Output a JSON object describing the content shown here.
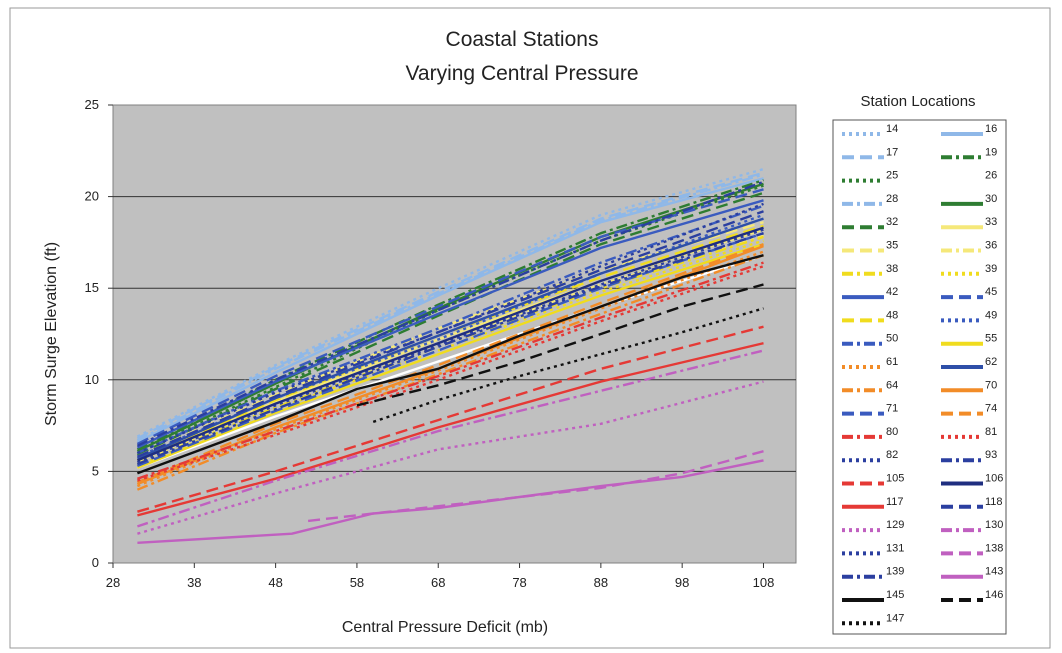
{
  "chart_data": {
    "type": "line",
    "title": "Coastal Stations",
    "subtitle": "Varying Central Pressure",
    "xlabel": "Central Pressure Deficit (mb)",
    "ylabel": "Storm Surge Elevation (ft)",
    "xlim": [
      28,
      112
    ],
    "ylim": [
      0,
      25
    ],
    "x_ticks": [
      "28",
      "38",
      "48",
      "58",
      "68",
      "78",
      "88",
      "98",
      "108"
    ],
    "y_ticks": [
      "0",
      "5",
      "10",
      "15",
      "20",
      "25"
    ],
    "grid": "horizontal",
    "background_color": "#c0c0c0",
    "legend_title": "Station Locations",
    "legend_position": "right",
    "series": [
      {
        "name": "14",
        "color": "#8fb8e8",
        "dash": "dot",
        "x": [
          31,
          48,
          68,
          88,
          108
        ],
        "y": [
          6.9,
          10.8,
          15.0,
          19.0,
          21.5
        ]
      },
      {
        "name": "16",
        "color": "#8fb8e8",
        "dash": "solid",
        "x": [
          31,
          48,
          68,
          88,
          108
        ],
        "y": [
          6.6,
          10.4,
          14.6,
          18.6,
          21.0
        ]
      },
      {
        "name": "17",
        "color": "#8fb8e8",
        "dash": "dash",
        "x": [
          31,
          48,
          68,
          88,
          108
        ],
        "y": [
          6.8,
          10.7,
          14.8,
          18.8,
          21.3
        ]
      },
      {
        "name": "19",
        "color": "#2e7d32",
        "dash": "dashdot",
        "x": [
          31,
          48,
          68,
          88,
          108
        ],
        "y": [
          6.2,
          10.0,
          14.1,
          18.0,
          20.9
        ]
      },
      {
        "name": "25",
        "color": "#2e7d32",
        "dash": "dot",
        "x": [
          31,
          48,
          68,
          88,
          108
        ],
        "y": [
          6.0,
          9.6,
          13.8,
          17.6,
          20.6
        ]
      },
      {
        "name": "26",
        "color": "#ffffff",
        "dash": "solid",
        "x": [
          31,
          48,
          68,
          88,
          108
        ],
        "y": [
          5.2,
          8.0,
          11.0,
          14.0,
          16.8
        ]
      },
      {
        "name": "28",
        "color": "#8fb8e8",
        "dash": "dashdot",
        "x": [
          31,
          48,
          68,
          88,
          108
        ],
        "y": [
          6.7,
          10.6,
          14.7,
          18.7,
          21.2
        ]
      },
      {
        "name": "30",
        "color": "#2e7d32",
        "dash": "solid",
        "x": [
          31,
          48,
          68,
          88,
          108
        ],
        "y": [
          6.1,
          9.8,
          13.9,
          17.8,
          20.7
        ]
      },
      {
        "name": "32",
        "color": "#2e7d32",
        "dash": "dash",
        "x": [
          31,
          48,
          68,
          88,
          108
        ],
        "y": [
          5.9,
          9.5,
          13.5,
          17.4,
          20.2
        ]
      },
      {
        "name": "33",
        "color": "#f5e87a",
        "dash": "solid",
        "x": [
          31,
          48,
          68,
          88,
          108
        ],
        "y": [
          5.6,
          8.8,
          12.2,
          15.4,
          18.2
        ]
      },
      {
        "name": "35",
        "color": "#f5e87a",
        "dash": "dash",
        "x": [
          31,
          48,
          68,
          88,
          108
        ],
        "y": [
          5.8,
          9.2,
          12.8,
          16.0,
          18.6
        ]
      },
      {
        "name": "36",
        "color": "#f5e87a",
        "dash": "dashdot",
        "x": [
          31,
          48,
          68,
          88,
          108
        ],
        "y": [
          5.5,
          8.7,
          12.0,
          15.2,
          17.9
        ]
      },
      {
        "name": "38",
        "color": "#f0dc1e",
        "dash": "dashdot",
        "x": [
          31,
          48,
          68,
          88,
          108
        ],
        "y": [
          5.4,
          8.5,
          11.8,
          15.0,
          17.8
        ]
      },
      {
        "name": "39",
        "color": "#f0dc1e",
        "dash": "dot",
        "x": [
          31,
          48,
          68,
          88,
          108
        ],
        "y": [
          5.3,
          8.4,
          11.6,
          14.8,
          17.6
        ]
      },
      {
        "name": "42",
        "color": "#3a5bbf",
        "dash": "solid",
        "x": [
          31,
          48,
          68,
          88,
          108
        ],
        "y": [
          6.3,
          9.9,
          13.6,
          17.2,
          19.8
        ]
      },
      {
        "name": "45",
        "color": "#3a5bbf",
        "dash": "dash",
        "x": [
          31,
          48,
          68,
          88,
          108
        ],
        "y": [
          6.5,
          10.2,
          14.0,
          17.8,
          20.4
        ]
      },
      {
        "name": "48",
        "color": "#f0dc1e",
        "dash": "dash",
        "x": [
          31,
          48,
          68,
          88,
          108
        ],
        "y": [
          5.6,
          8.9,
          12.4,
          15.6,
          18.4
        ]
      },
      {
        "name": "49",
        "color": "#3a5bbf",
        "dash": "dot",
        "x": [
          31,
          48,
          68,
          88,
          108
        ],
        "y": [
          5.8,
          9.0,
          12.2,
          15.8,
          19.0
        ]
      },
      {
        "name": "50",
        "color": "#3a5bbf",
        "dash": "dashdot",
        "x": [
          31,
          48,
          68,
          88,
          108
        ],
        "y": [
          6.0,
          9.4,
          12.8,
          16.4,
          19.5
        ]
      },
      {
        "name": "55",
        "color": "#f0dc1e",
        "dash": "solid",
        "x": [
          31,
          48,
          68,
          88,
          108
        ],
        "y": [
          5.2,
          8.2,
          11.4,
          14.6,
          17.4
        ]
      },
      {
        "name": "61",
        "color": "#f28c28",
        "dash": "dot",
        "x": [
          31,
          48,
          68,
          88,
          108
        ],
        "y": [
          4.2,
          7.3,
          10.5,
          13.9,
          17.0
        ]
      },
      {
        "name": "62",
        "color": "#2e4fa8",
        "dash": "solid",
        "x": [
          31,
          48,
          68,
          88,
          108
        ],
        "y": [
          5.7,
          9.0,
          12.4,
          15.8,
          18.8
        ]
      },
      {
        "name": "64",
        "color": "#f28c28",
        "dash": "dashdot",
        "x": [
          31,
          48,
          68,
          88,
          108
        ],
        "y": [
          4.0,
          7.1,
          10.3,
          13.6,
          16.8
        ]
      },
      {
        "name": "70",
        "color": "#f28c28",
        "dash": "solid",
        "x": [
          31,
          48,
          68,
          88,
          108
        ],
        "y": [
          4.3,
          7.4,
          10.6,
          14.0,
          17.3
        ]
      },
      {
        "name": "71",
        "color": "#3a5bbf",
        "dash": "dash",
        "x": [
          31,
          48,
          68,
          88,
          108
        ],
        "y": [
          5.3,
          8.3,
          11.6,
          15.0,
          18.0
        ]
      },
      {
        "name": "74",
        "color": "#f28c28",
        "dash": "dash",
        "x": [
          31,
          48,
          68,
          88,
          108
        ],
        "y": [
          4.4,
          7.6,
          10.8,
          14.2,
          17.4
        ]
      },
      {
        "name": "80",
        "color": "#e53935",
        "dash": "dashdot",
        "x": [
          31,
          48,
          68,
          88,
          108
        ],
        "y": [
          4.6,
          7.2,
          10.2,
          13.4,
          16.4
        ]
      },
      {
        "name": "81",
        "color": "#e53935",
        "dash": "dot",
        "x": [
          31,
          48,
          68,
          88,
          108
        ],
        "y": [
          4.5,
          7.0,
          10.0,
          13.2,
          16.2
        ]
      },
      {
        "name": "82",
        "color": "#2b3fa0",
        "dash": "dot",
        "x": [
          31,
          48,
          68,
          88,
          108
        ],
        "y": [
          5.5,
          8.6,
          11.9,
          15.2,
          18.2
        ]
      },
      {
        "name": "93",
        "color": "#2b3fa0",
        "dash": "dashdot",
        "x": [
          31,
          48,
          68,
          88,
          108
        ],
        "y": [
          5.4,
          8.4,
          11.8,
          15.1,
          18.0
        ]
      },
      {
        "name": "105",
        "color": "#e53935",
        "dash": "dash",
        "x": [
          31,
          48,
          68,
          88,
          108
        ],
        "y": [
          2.8,
          5.0,
          7.8,
          10.6,
          12.9
        ]
      },
      {
        "name": "106",
        "color": "#1f2e80",
        "dash": "solid",
        "x": [
          31,
          48,
          68,
          88,
          108
        ],
        "y": [
          5.6,
          8.7,
          12.0,
          15.4,
          18.3
        ]
      },
      {
        "name": "117",
        "color": "#e53935",
        "dash": "solid",
        "x": [
          31,
          48,
          68,
          88,
          108
        ],
        "y": [
          2.6,
          4.6,
          7.4,
          9.9,
          12.0
        ]
      },
      {
        "name": "118",
        "color": "#2b3fa0",
        "dash": "dash",
        "x": [
          31,
          48,
          68,
          88,
          108
        ],
        "y": [
          5.8,
          9.1,
          12.6,
          16.0,
          19.2
        ]
      },
      {
        "name": "129",
        "color": "#c060c0",
        "dash": "dot",
        "x": [
          31,
          48,
          68,
          88,
          108
        ],
        "y": [
          1.6,
          3.8,
          6.2,
          7.6,
          9.9
        ]
      },
      {
        "name": "130",
        "color": "#c060c0",
        "dash": "dashdot",
        "x": [
          31,
          48,
          68,
          88,
          108
        ],
        "y": [
          2.0,
          4.5,
          7.2,
          9.4,
          11.6
        ]
      },
      {
        "name": "131",
        "color": "#2b3fa0",
        "dash": "dot",
        "x": [
          31,
          48,
          68,
          88,
          108
        ],
        "y": [
          6.0,
          9.3,
          12.6,
          16.2,
          19.6
        ]
      },
      {
        "name": "138",
        "color": "#c060c0",
        "dash": "dash",
        "x": [
          52,
          60,
          68,
          78,
          88,
          98,
          108
        ],
        "y": [
          2.3,
          2.7,
          3.1,
          3.6,
          4.1,
          4.9,
          6.1
        ]
      },
      {
        "name": "139",
        "color": "#2b3fa0",
        "dash": "dashdot",
        "x": [
          31,
          48,
          68,
          88,
          108
        ],
        "y": [
          6.4,
          10.0,
          13.8,
          17.6,
          20.8
        ]
      },
      {
        "name": "143",
        "color": "#c060c0",
        "dash": "solid",
        "x": [
          31,
          50,
          60,
          68,
          78,
          88,
          98,
          108
        ],
        "y": [
          1.1,
          1.6,
          2.7,
          3.0,
          3.6,
          4.2,
          4.7,
          5.6
        ]
      },
      {
        "name": "145",
        "color": "#111111",
        "dash": "solid",
        "x": [
          31,
          48,
          58,
          68,
          78,
          88,
          98,
          108
        ],
        "y": [
          4.9,
          7.7,
          9.5,
          10.6,
          12.4,
          14.0,
          15.6,
          16.8
        ]
      },
      {
        "name": "146",
        "color": "#111111",
        "dash": "dash",
        "x": [
          58,
          68,
          78,
          88,
          98,
          108
        ],
        "y": [
          8.6,
          9.7,
          11.0,
          12.5,
          14.0,
          15.2
        ]
      },
      {
        "name": "147",
        "color": "#111111",
        "dash": "dot",
        "x": [
          60,
          68,
          78,
          88,
          98,
          108
        ],
        "y": [
          7.7,
          8.9,
          10.2,
          11.4,
          12.6,
          13.9
        ]
      }
    ]
  }
}
